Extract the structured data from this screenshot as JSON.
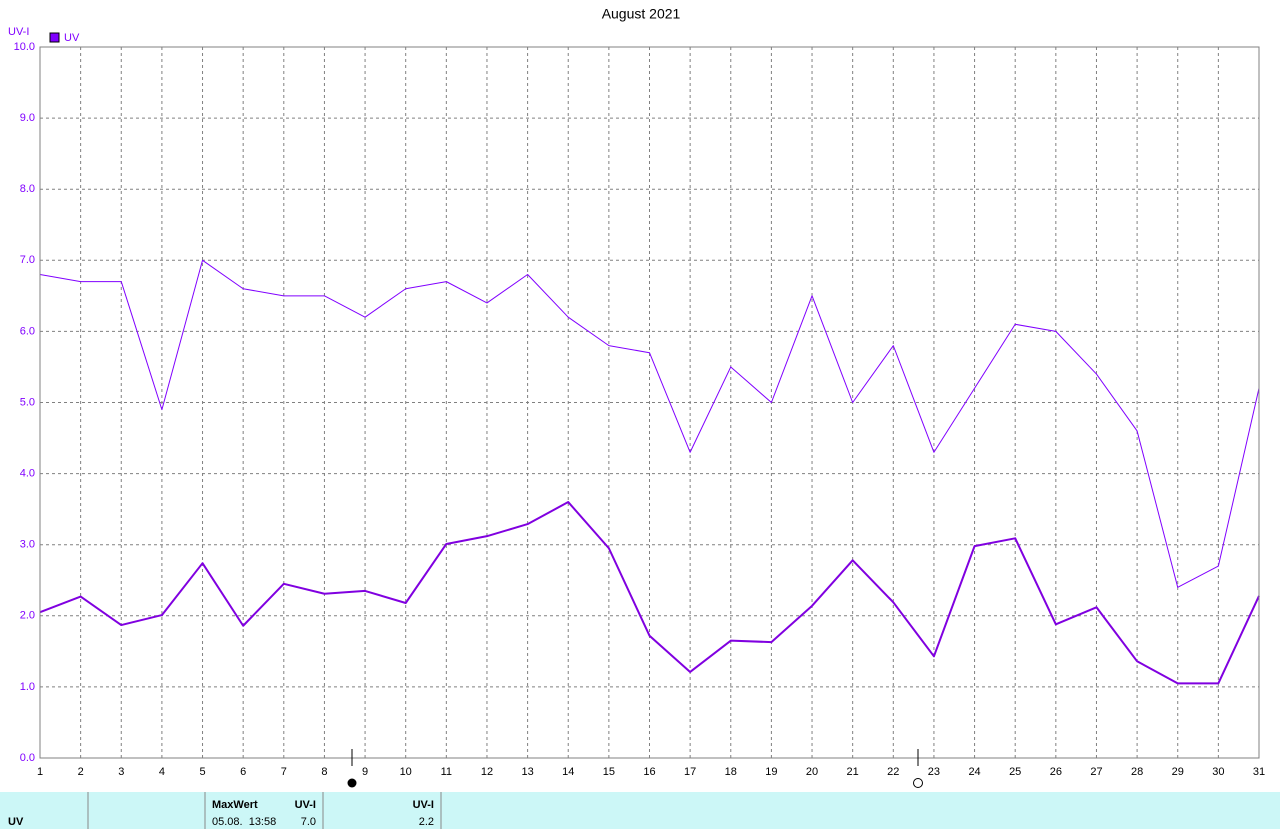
{
  "chart_data": {
    "type": "line",
    "title": "August 2021",
    "y_label": "UV-I",
    "x": [
      1,
      2,
      3,
      4,
      5,
      6,
      7,
      8,
      9,
      10,
      11,
      12,
      13,
      14,
      15,
      16,
      17,
      18,
      19,
      20,
      21,
      22,
      23,
      24,
      25,
      26,
      27,
      28,
      29,
      30,
      31
    ],
    "xlim": [
      1,
      31
    ],
    "xticks": [
      1,
      2,
      3,
      4,
      5,
      6,
      7,
      8,
      9,
      10,
      11,
      12,
      13,
      14,
      15,
      16,
      17,
      18,
      19,
      20,
      21,
      22,
      23,
      24,
      25,
      26,
      27,
      28,
      29,
      30,
      31
    ],
    "ylim": [
      0,
      10
    ],
    "yticks": [
      {
        "value": 0,
        "label": "0.0"
      },
      {
        "value": 1,
        "label": "1.0"
      },
      {
        "value": 2,
        "label": "2.0"
      },
      {
        "value": 3,
        "label": "3.0"
      },
      {
        "value": 4,
        "label": "4.0"
      },
      {
        "value": 5,
        "label": "5.0"
      },
      {
        "value": 6,
        "label": "6.0"
      },
      {
        "value": 7,
        "label": "7.0"
      },
      {
        "value": 8,
        "label": "8.0"
      },
      {
        "value": 9,
        "label": "9.0"
      },
      {
        "value": 10,
        "label": "10.0"
      }
    ],
    "grid": true,
    "series": [
      {
        "name": "UV",
        "color": "#8000ff",
        "width": 1,
        "values": [
          6.8,
          6.7,
          6.7,
          4.9,
          7.0,
          6.6,
          6.5,
          6.5,
          6.2,
          6.6,
          6.7,
          6.4,
          6.8,
          6.2,
          5.8,
          5.7,
          4.3,
          5.5,
          5.0,
          6.5,
          5.0,
          5.8,
          4.3,
          5.2,
          6.1,
          6.0,
          5.4,
          4.6,
          2.4,
          2.7,
          5.2
        ]
      },
      {
        "color": "#8000e0",
        "width": 2,
        "values": [
          2.05,
          2.27,
          1.87,
          2.01,
          2.74,
          1.86,
          2.45,
          2.31,
          2.35,
          2.18,
          3.01,
          3.12,
          3.29,
          3.6,
          2.95,
          1.72,
          1.21,
          1.65,
          1.63,
          2.14,
          2.78,
          2.19,
          1.43,
          2.98,
          3.09,
          1.88,
          2.12,
          1.36,
          1.05,
          1.05,
          2.28
        ]
      }
    ]
  },
  "table": {
    "row_label": "UV",
    "col1_header": "MaxWert",
    "col1_unit": "UV-I",
    "col1_time": "05.08.  13:58",
    "col1_value": "7.0",
    "col2_unit": "UV-I",
    "col2_value": "2.2"
  }
}
